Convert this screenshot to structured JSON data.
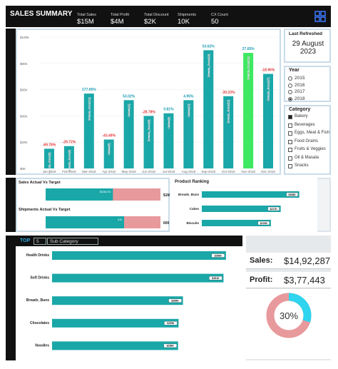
{
  "header": {
    "title": "SALES SUMMARY",
    "kpis": [
      {
        "label": "Total Sales",
        "value": "$15M"
      },
      {
        "label": "Total Profit",
        "value": "$4M"
      },
      {
        "label": "Total Discount",
        "value": "$2K"
      },
      {
        "label": "Shipments",
        "value": "10K"
      },
      {
        "label": "CX Count",
        "value": "50"
      }
    ]
  },
  "chart_data": {
    "type": "bar",
    "categories": [
      "Jan-2018",
      "Feb-2018",
      "Mar-2018",
      "Apr-2018",
      "May-2018",
      "Jun-2018",
      "Jul-2018",
      "Aug-2018",
      "Sep-2018",
      "Oct-2018",
      "Nov-2018",
      "Dec-2018"
    ],
    "values": [
      15000,
      17000,
      57000,
      22000,
      52000,
      40000,
      42000,
      52000,
      90000,
      55000,
      88000,
      72000
    ],
    "growth_labels": [
      "-69.78%",
      "-29.72%",
      "177.05%",
      "-43.49%",
      "53.02%",
      "-28.78%",
      "0.81%",
      "4.95%",
      "53.62%",
      "-30.23%",
      "27.65%",
      "-18.96%"
    ],
    "bar_labels": [
      "Breads_Buns(6)",
      "Breads_Buns(6)",
      "Breads_Buns(12)",
      "Cakes(8)",
      "Cakes(11)",
      "Breads_Buns(8)",
      "Cakes(8)",
      "Cakes(10)",
      "Breads_Buns(18)",
      "Breads_Buns(12)",
      "Breads_Buns(18)",
      "Breads_Buns(17)"
    ],
    "color": "#1aa7a8",
    "highlight_category": "Nov-2018",
    "highlight_color": "#3ee860",
    "ylim": [
      0,
      100000
    ],
    "yticks": [
      {
        "value": 0,
        "label": "$0K"
      },
      {
        "value": 20000,
        "label": "$20K"
      },
      {
        "value": 40000,
        "label": "$40K"
      },
      {
        "value": 60000,
        "label": "$60K"
      },
      {
        "value": 80000,
        "label": "$80K"
      },
      {
        "value": 100000,
        "label": "$100K"
      }
    ],
    "grid": true
  },
  "filters": {
    "last_refreshed_title": "Last Refreshed",
    "last_refreshed": "29 August 2023",
    "year": {
      "title": "Year",
      "options": [
        "2015",
        "2016",
        "2017",
        "2018"
      ],
      "selected": "2018"
    },
    "category": {
      "title": "Category",
      "options": [
        "Bakery",
        "Beverages",
        "Eggs, Meat & Fish",
        "Food Grains",
        "Fruits & Veggies",
        "Oil & Masala",
        "Snacks"
      ],
      "checked": "Bakery"
    }
  },
  "target_charts": [
    {
      "title": "Sales Actual Vs Target",
      "actual": 586074,
      "actual_label": "$5,86,074",
      "target": 1000000,
      "target_label": "$1M"
    },
    {
      "title": "Shipments Actual Vs Target",
      "actual": 410,
      "actual_label": "410",
      "target": 600,
      "target_label": "600"
    }
  ],
  "product_ranking": {
    "title": "Product Ranking",
    "categories": [
      "Breads_Buns",
      "Cakes",
      "Biscuits"
    ],
    "values": [
      268000,
      217000,
      190000
    ],
    "value_labels": [
      "$268K",
      "$217K",
      "$190K"
    ],
    "xlim": [
      0,
      300000
    ]
  },
  "top_chart": {
    "top_label": "TOP",
    "top_n": "5",
    "dimension": "Sub Category",
    "categories": [
      "Health Drinks",
      "Soft Drinks",
      "Breads_Buns",
      "Chocolates",
      "Noodles"
    ],
    "values": [
      356000,
      351000,
      268000,
      259000,
      258000
    ],
    "value_labels": [
      "$356K",
      "$351K",
      "$268K",
      "$259K",
      "$258K"
    ],
    "xlim": [
      0,
      400000
    ]
  },
  "kpi_cards": [
    {
      "label": "Sales:",
      "value": "$14,92,287"
    },
    {
      "label": "Profit:",
      "value": "$3,77,443"
    }
  ],
  "donut": {
    "value": 30,
    "label": "30%",
    "color": "#2fd4ee",
    "rest_color": "#e8999c"
  }
}
